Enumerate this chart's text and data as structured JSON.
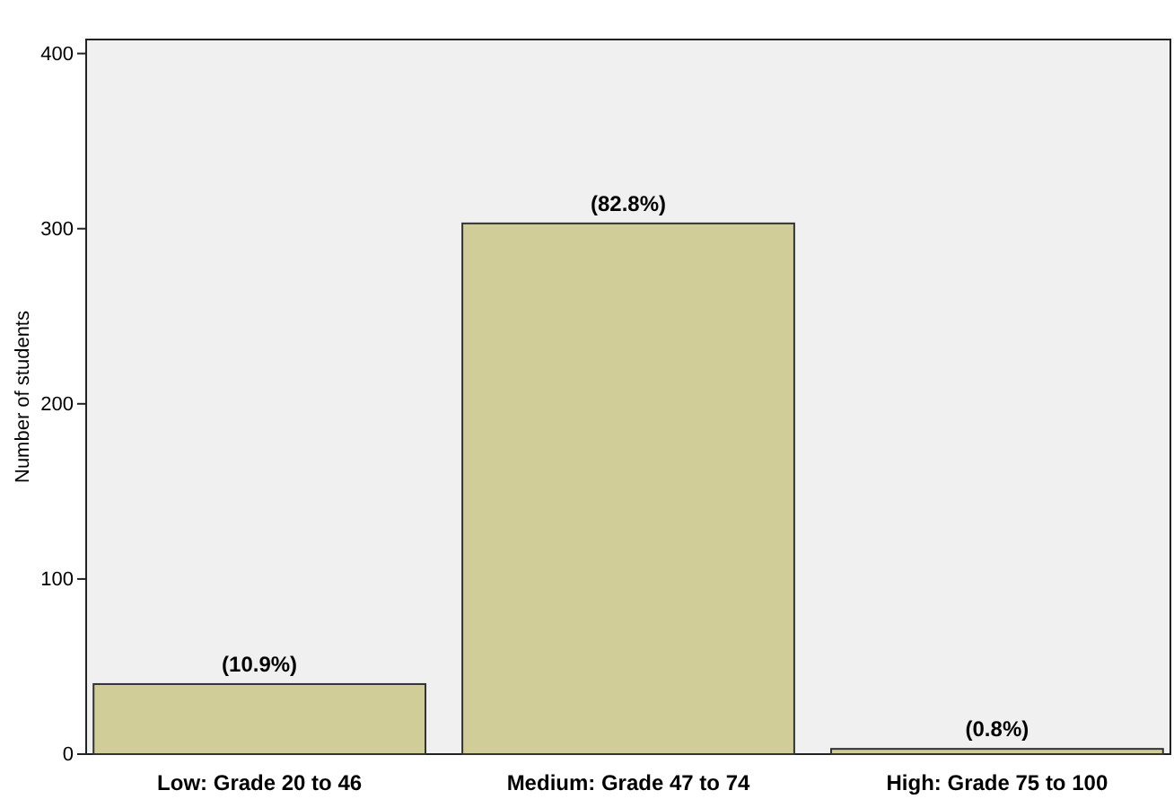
{
  "chart_data": {
    "type": "bar",
    "ylabel": "Number of students",
    "categories": [
      "Low: Grade 20 to 46",
      "Medium: Grade 47 to 74",
      "High: Grade 75 to 100"
    ],
    "values": [
      40,
      303,
      3
    ],
    "annotations": [
      {
        "text": "(10.9%)",
        "x": "Low: Grade 20 to 46",
        "y": 40
      },
      {
        "text": "(82.8%)",
        "x": "Medium: Grade 47 to 74",
        "y": 303
      },
      {
        "text": "(0.8%)",
        "x": "High: Grade 75 to 100",
        "y": 3
      }
    ],
    "color": "#d1cd98",
    "ylim": [
      0,
      408
    ],
    "yticks": [
      0,
      100,
      200,
      300,
      400
    ],
    "grid": false
  }
}
